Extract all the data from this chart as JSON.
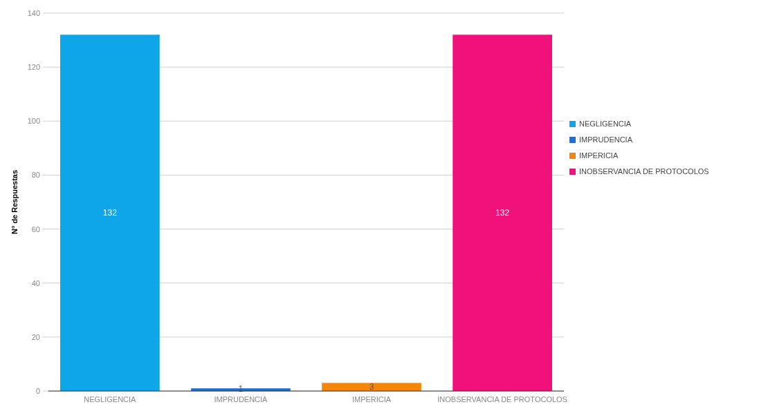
{
  "chart_data": {
    "type": "bar",
    "ylabel": "N° de Respuestas",
    "categories": [
      "NEGLIGENCIA",
      "IMPRUDENCIA",
      "IMPERICIA",
      "INOBSERVANCIA DE PROTOCOLOS"
    ],
    "series": [
      {
        "name": "NEGLIGENCIA",
        "color": "#0ea5e9",
        "values": [
          132,
          null,
          null,
          null
        ]
      },
      {
        "name": "IMPRUDENCIA",
        "color": "#1f6fd1",
        "values": [
          null,
          1,
          null,
          null
        ]
      },
      {
        "name": "IMPERICIA",
        "color": "#f5860c",
        "values": [
          null,
          null,
          3,
          null
        ]
      },
      {
        "name": "INOBSERVANCIA DE PROTOCOLOS",
        "color": "#f0127a",
        "values": [
          null,
          null,
          null,
          132
        ]
      }
    ],
    "ylim": [
      0,
      140
    ],
    "yticks": [
      0,
      20,
      40,
      60,
      80,
      100,
      120,
      140
    ],
    "grid": "y",
    "legend": "right",
    "data_labels": true
  }
}
